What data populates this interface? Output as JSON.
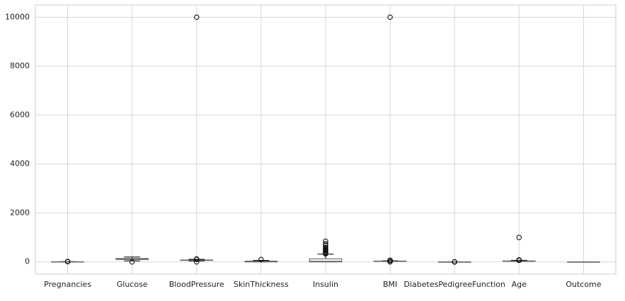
{
  "chart_data": {
    "type": "box",
    "categories": [
      "Pregnancies",
      "Glucose",
      "BloodPressure",
      "SkinThickness",
      "Insulin",
      "BMI",
      "DiabetesPedigreeFunction",
      "Age",
      "Outcome"
    ],
    "boxes": [
      {
        "min": 0,
        "q1": 1,
        "median": 3,
        "q3": 6,
        "max": 13,
        "outliers": [
          14,
          15,
          17
        ]
      },
      {
        "min": 44,
        "q1": 99,
        "median": 117,
        "q3": 140,
        "max": 199,
        "outliers": [
          0
        ]
      },
      {
        "min": 40,
        "q1": 62,
        "median": 72,
        "q3": 80,
        "max": 106,
        "outliers": [
          0,
          10000,
          108,
          110,
          122
        ]
      },
      {
        "min": 0,
        "q1": 0,
        "median": 23,
        "q3": 32,
        "max": 63,
        "outliers": [
          99
        ]
      },
      {
        "min": 0,
        "q1": 0,
        "median": 30,
        "q3": 127,
        "max": 318,
        "outliers": [
          330,
          360,
          400,
          450,
          480,
          495,
          540,
          600,
          680,
          744,
          846
        ]
      },
      {
        "min": 18.2,
        "q1": 27.3,
        "median": 32,
        "q3": 36.6,
        "max": 50,
        "outliers": [
          0,
          10000,
          52.3,
          55,
          57.3,
          59.4,
          67.1
        ]
      },
      {
        "min": 0.078,
        "q1": 0.244,
        "median": 0.372,
        "q3": 0.626,
        "max": 1.19,
        "outliers": [
          1.3,
          1.6,
          2.42
        ]
      },
      {
        "min": 21,
        "q1": 24,
        "median": 29,
        "q3": 41,
        "max": 66,
        "outliers": [
          67,
          69,
          72,
          81,
          1000
        ]
      },
      {
        "min": 0,
        "q1": 0,
        "median": 0,
        "q3": 1,
        "max": 1,
        "outliers": []
      }
    ],
    "box_color": "#555555",
    "whisker_color": "#000000",
    "median_color": "#666666",
    "ylim": [
      -500,
      10500
    ],
    "yticks": [
      0,
      2000,
      4000,
      6000,
      8000,
      10000
    ],
    "grid": true
  }
}
